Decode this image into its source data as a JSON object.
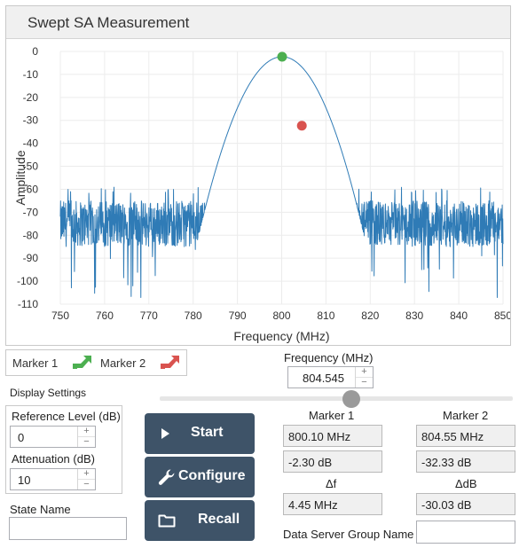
{
  "panel": {
    "title": "Swept SA Measurement"
  },
  "chart_data": {
    "type": "line",
    "title": "",
    "xlabel": "Frequency (MHz)",
    "ylabel": "Amplitude",
    "xlim": [
      750,
      850
    ],
    "ylim": [
      -110,
      0
    ],
    "xticks": [
      750,
      760,
      770,
      780,
      790,
      800,
      810,
      820,
      830,
      840,
      850
    ],
    "yticks": [
      0,
      -10,
      -20,
      -30,
      -40,
      -50,
      -60,
      -70,
      -80,
      -90,
      -100,
      -110
    ],
    "grid": true,
    "series": [
      {
        "color": "#2f7bb6",
        "noise_floor_db": -75,
        "noise_band_db": [
          -88,
          -62
        ],
        "noise_spikes_min_db": -108,
        "peak_x": 800.1,
        "peak_y": -2.3
      }
    ],
    "markers": [
      {
        "x": 800.1,
        "y": -2.3,
        "color": "#4caf50"
      },
      {
        "x": 804.55,
        "y": -32.33,
        "color": "#d9534f"
      }
    ]
  },
  "legend": {
    "marker1": "Marker 1",
    "marker2": "Marker 2",
    "marker1_color": "#4caf50",
    "marker2_color": "#d9534f"
  },
  "frequency": {
    "label": "Frequency (MHz)",
    "value": "804.545"
  },
  "display_settings": {
    "title": "Display Settings",
    "reference_level_label": "Reference Level (dB)",
    "reference_level_value": "0",
    "attenuation_label": "Attenuation (dB)",
    "attenuation_value": "10"
  },
  "buttons": {
    "start": "Start",
    "configure": "Configure",
    "recall": "Recall"
  },
  "spinner": {
    "up": "+",
    "down": "−"
  },
  "markers_panel": {
    "marker1_label": "Marker 1",
    "marker2_label": "Marker 2",
    "marker1_freq": "800.10 MHz",
    "marker1_amp": "-2.30 dB",
    "marker2_freq": "804.55 MHz",
    "marker2_amp": "-32.33 dB",
    "delta_f_label": "Δf",
    "delta_f_value": "4.45 MHz",
    "delta_db_label": "ΔdB",
    "delta_db_value": "-30.03 dB"
  },
  "state": {
    "label": "State Name",
    "value": ""
  },
  "data_server": {
    "label": "Data Server Group Name",
    "value": ""
  },
  "colors": {
    "button_bg": "#3e5368",
    "trace": "#2f7bb6"
  }
}
